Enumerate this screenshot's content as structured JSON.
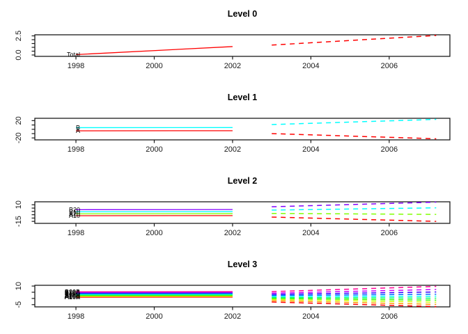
{
  "figure": {
    "kind": "R hierarchical time series forecast plot",
    "background": "#ffffff",
    "text_color": "#1a1a1a",
    "history_style": "solid",
    "forecast_style": "dashed"
  },
  "chart_data": [
    {
      "type": "line",
      "title": "Level 0",
      "xlim": [
        1996.95,
        2007.55
      ],
      "ylim": [
        -0.18,
        2.64
      ],
      "x_ticks": [
        1998,
        2000,
        2002,
        2004,
        2006
      ],
      "y_ticks": [
        0,
        0.5,
        1,
        1.5,
        2,
        2.5
      ],
      "y_labels": [
        {
          "value": 0,
          "label": "0.0"
        },
        {
          "value": 2.5,
          "label": "2.5"
        }
      ],
      "grid": false,
      "legend": "labels-at-line-start",
      "series": [
        {
          "name": "Total",
          "color": "#FF0000",
          "history": {
            "x": [
              1998,
              2002
            ],
            "y": [
              0.05,
              1.1
            ]
          },
          "forecast": {
            "x": [
              2003,
              2007.2
            ],
            "y": [
              1.3,
              2.55
            ]
          }
        }
      ]
    },
    {
      "type": "line",
      "title": "Level 1",
      "xlim": [
        1996.95,
        2007.55
      ],
      "ylim": [
        -24.5,
        25.5
      ],
      "x_ticks": [
        1998,
        2000,
        2002,
        2004,
        2006
      ],
      "y_ticks": [
        -20,
        -10,
        0,
        10,
        20
      ],
      "y_labels": [
        {
          "value": -20,
          "label": "-20"
        },
        {
          "value": 20,
          "label": "20"
        }
      ],
      "grid": false,
      "legend": "labels-at-line-start",
      "series": [
        {
          "name": "A",
          "color": "#FF0000",
          "history": {
            "x": [
              1998,
              2002
            ],
            "y": [
              -3.5,
              -3.3
            ]
          },
          "forecast": {
            "x": [
              2003,
              2007.2
            ],
            "y": [
              -10,
              -22
            ]
          }
        },
        {
          "name": "B",
          "color": "#00FFFF",
          "history": {
            "x": [
              1998,
              2002
            ],
            "y": [
              3.8,
              4.0
            ]
          },
          "forecast": {
            "x": [
              2003,
              2007.2
            ],
            "y": [
              11,
              23
            ]
          }
        }
      ]
    },
    {
      "type": "line",
      "title": "Level 2",
      "xlim": [
        1996.95,
        2007.55
      ],
      "ylim": [
        -18,
        14.5
      ],
      "x_ticks": [
        1998,
        2000,
        2002,
        2004,
        2006
      ],
      "y_ticks": [
        -15,
        -10,
        -5,
        0,
        5,
        10
      ],
      "y_labels": [
        {
          "value": -15,
          "label": "-15"
        },
        {
          "value": 10,
          "label": "10"
        }
      ],
      "grid": false,
      "legend": "labels-at-line-start",
      "series": [
        {
          "name": "A10",
          "color": "#FF0000",
          "history": {
            "x": [
              1998,
              2002
            ],
            "y": [
              -6.5,
              -6.3
            ]
          },
          "forecast": {
            "x": [
              2003,
              2007.2
            ],
            "y": [
              -8.5,
              -15
            ]
          }
        },
        {
          "name": "A20",
          "color": "#80FF00",
          "history": {
            "x": [
              1998,
              2002
            ],
            "y": [
              -3.6,
              -3.4
            ]
          },
          "forecast": {
            "x": [
              2003,
              2007.2
            ],
            "y": [
              -3.0,
              -4.5
            ]
          }
        },
        {
          "name": "B10",
          "color": "#00FFFF",
          "history": {
            "x": [
              1998,
              2002
            ],
            "y": [
              -0.6,
              -0.4
            ]
          },
          "forecast": {
            "x": [
              2003,
              2007.2
            ],
            "y": [
              2.0,
              5.4
            ]
          }
        },
        {
          "name": "B20",
          "color": "#8000FF",
          "history": {
            "x": [
              1998,
              2002
            ],
            "y": [
              2.6,
              2.8
            ]
          },
          "forecast": {
            "x": [
              2003,
              2007.2
            ],
            "y": [
              7.0,
              14.0
            ]
          }
        }
      ]
    },
    {
      "type": "line",
      "title": "Level 3",
      "xlim": [
        1996.95,
        2007.55
      ],
      "ylim": [
        -6.8,
        10.6
      ],
      "x_ticks": [
        1998,
        2000,
        2002,
        2004,
        2006
      ],
      "y_ticks": [
        -5,
        0,
        5,
        10
      ],
      "y_labels": [
        {
          "value": -5,
          "label": "-5"
        },
        {
          "value": 10,
          "label": "10"
        }
      ],
      "grid": false,
      "legend": "labels-at-line-start",
      "series": [
        {
          "name": "A10A",
          "color": "#FF0000",
          "history": {
            "x": [
              1998,
              2002
            ],
            "y": [
              1.0,
              1.1
            ]
          },
          "forecast": {
            "x": [
              2003,
              2007.2
            ],
            "y": [
              -2.9,
              -6.6
            ]
          }
        },
        {
          "name": "A10B",
          "color": "#FF9900",
          "history": {
            "x": [
              1998,
              2002
            ],
            "y": [
              1.4,
              1.5
            ]
          },
          "forecast": {
            "x": [
              2003,
              2007.2
            ],
            "y": [
              -1.8,
              -4.8
            ]
          }
        },
        {
          "name": "A10C",
          "color": "#CCFF00",
          "history": {
            "x": [
              1998,
              2002
            ],
            "y": [
              1.9,
              2.0
            ]
          },
          "forecast": {
            "x": [
              2003,
              2007.2
            ],
            "y": [
              -0.8,
              -3.0
            ]
          }
        },
        {
          "name": "A20A",
          "color": "#33FF00",
          "history": {
            "x": [
              1998,
              2002
            ],
            "y": [
              2.4,
              2.5
            ]
          },
          "forecast": {
            "x": [
              2003,
              2007.2
            ],
            "y": [
              0.0,
              -1.4
            ]
          }
        },
        {
          "name": "A20B",
          "color": "#00FF66",
          "history": {
            "x": [
              1998,
              2002
            ],
            "y": [
              2.9,
              3.0
            ]
          },
          "forecast": {
            "x": [
              2003,
              2007.2
            ],
            "y": [
              0.8,
              0.2
            ]
          }
        },
        {
          "name": "B10A",
          "color": "#00FFFF",
          "history": {
            "x": [
              1998,
              2002
            ],
            "y": [
              3.4,
              3.5
            ]
          },
          "forecast": {
            "x": [
              2003,
              2007.2
            ],
            "y": [
              1.6,
              1.8
            ]
          }
        },
        {
          "name": "B10B",
          "color": "#0066FF",
          "history": {
            "x": [
              1998,
              2002
            ],
            "y": [
              3.9,
              4.0
            ]
          },
          "forecast": {
            "x": [
              2003,
              2007.2
            ],
            "y": [
              2.4,
              3.4
            ]
          }
        },
        {
          "name": "B10C",
          "color": "#3300FF",
          "history": {
            "x": [
              1998,
              2002
            ],
            "y": [
              4.4,
              4.5
            ]
          },
          "forecast": {
            "x": [
              2003,
              2007.2
            ],
            "y": [
              3.3,
              5.2
            ]
          }
        },
        {
          "name": "B20A",
          "color": "#CC00FF",
          "history": {
            "x": [
              1998,
              2002
            ],
            "y": [
              4.9,
              5.0
            ]
          },
          "forecast": {
            "x": [
              2003,
              2007.2
            ],
            "y": [
              4.3,
              7.2
            ]
          }
        },
        {
          "name": "B20B",
          "color": "#FF0099",
          "history": {
            "x": [
              1998,
              2002
            ],
            "y": [
              5.4,
              5.5
            ]
          },
          "forecast": {
            "x": [
              2003,
              2007.2
            ],
            "y": [
              5.5,
              9.7
            ]
          }
        }
      ]
    }
  ]
}
